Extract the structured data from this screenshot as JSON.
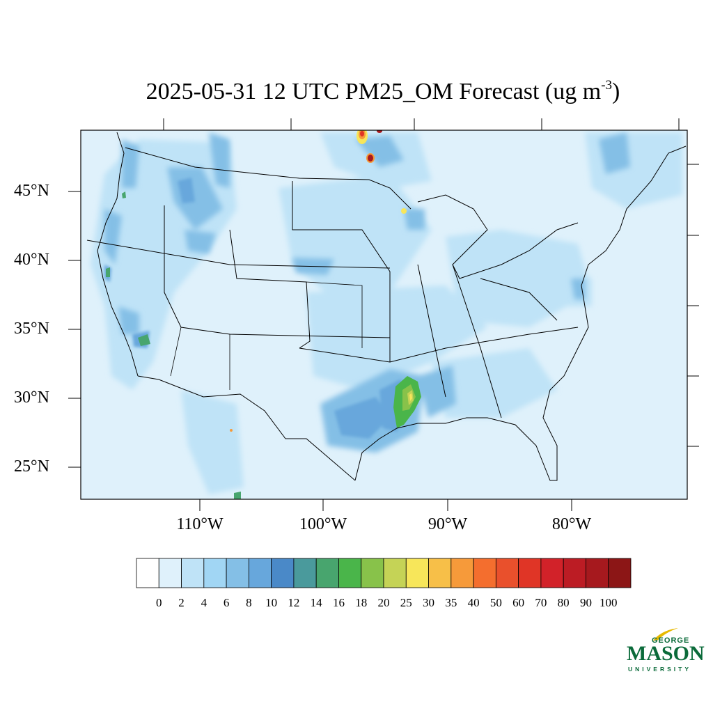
{
  "title": {
    "main": "2025-05-31 12 UTC PM25_OM Forecast (ug m",
    "sup": "-3",
    "close": ")"
  },
  "axes": {
    "lat_labels": [
      "45°N",
      "40°N",
      "35°N",
      "30°N",
      "25°N"
    ],
    "lon_labels": [
      "110°W",
      "100°W",
      "90°W",
      "80°W"
    ]
  },
  "colorbar": {
    "ticks": [
      "0",
      "2",
      "4",
      "6",
      "8",
      "10",
      "12",
      "14",
      "16",
      "18",
      "20",
      "25",
      "30",
      "35",
      "40",
      "50",
      "60",
      "70",
      "80",
      "90",
      "100"
    ],
    "colors": [
      "#ffffff",
      "#dff1fb",
      "#bfe3f7",
      "#a1d6f4",
      "#84bfe6",
      "#67a7dc",
      "#4a89c8",
      "#4a9a9c",
      "#48a56e",
      "#4ab54a",
      "#88c24a",
      "#c5d356",
      "#f7e65a",
      "#f7bf48",
      "#f69a3a",
      "#f46e2e",
      "#e9502c",
      "#e03526",
      "#d22229",
      "#bc1c24",
      "#a6191e",
      "#8c1616"
    ]
  },
  "logo": {
    "george": "GEORGE",
    "mason": "MASON",
    "university": "UNIVERSITY"
  },
  "map": {
    "background_color": "#dff1fb",
    "hotspots": [
      {
        "area": "East Texas / Louisiana",
        "level": "18-30"
      },
      {
        "area": "Manitoba / NW Ontario",
        "level": "40-100"
      },
      {
        "area": "Southern California",
        "level": "12-16"
      }
    ]
  }
}
